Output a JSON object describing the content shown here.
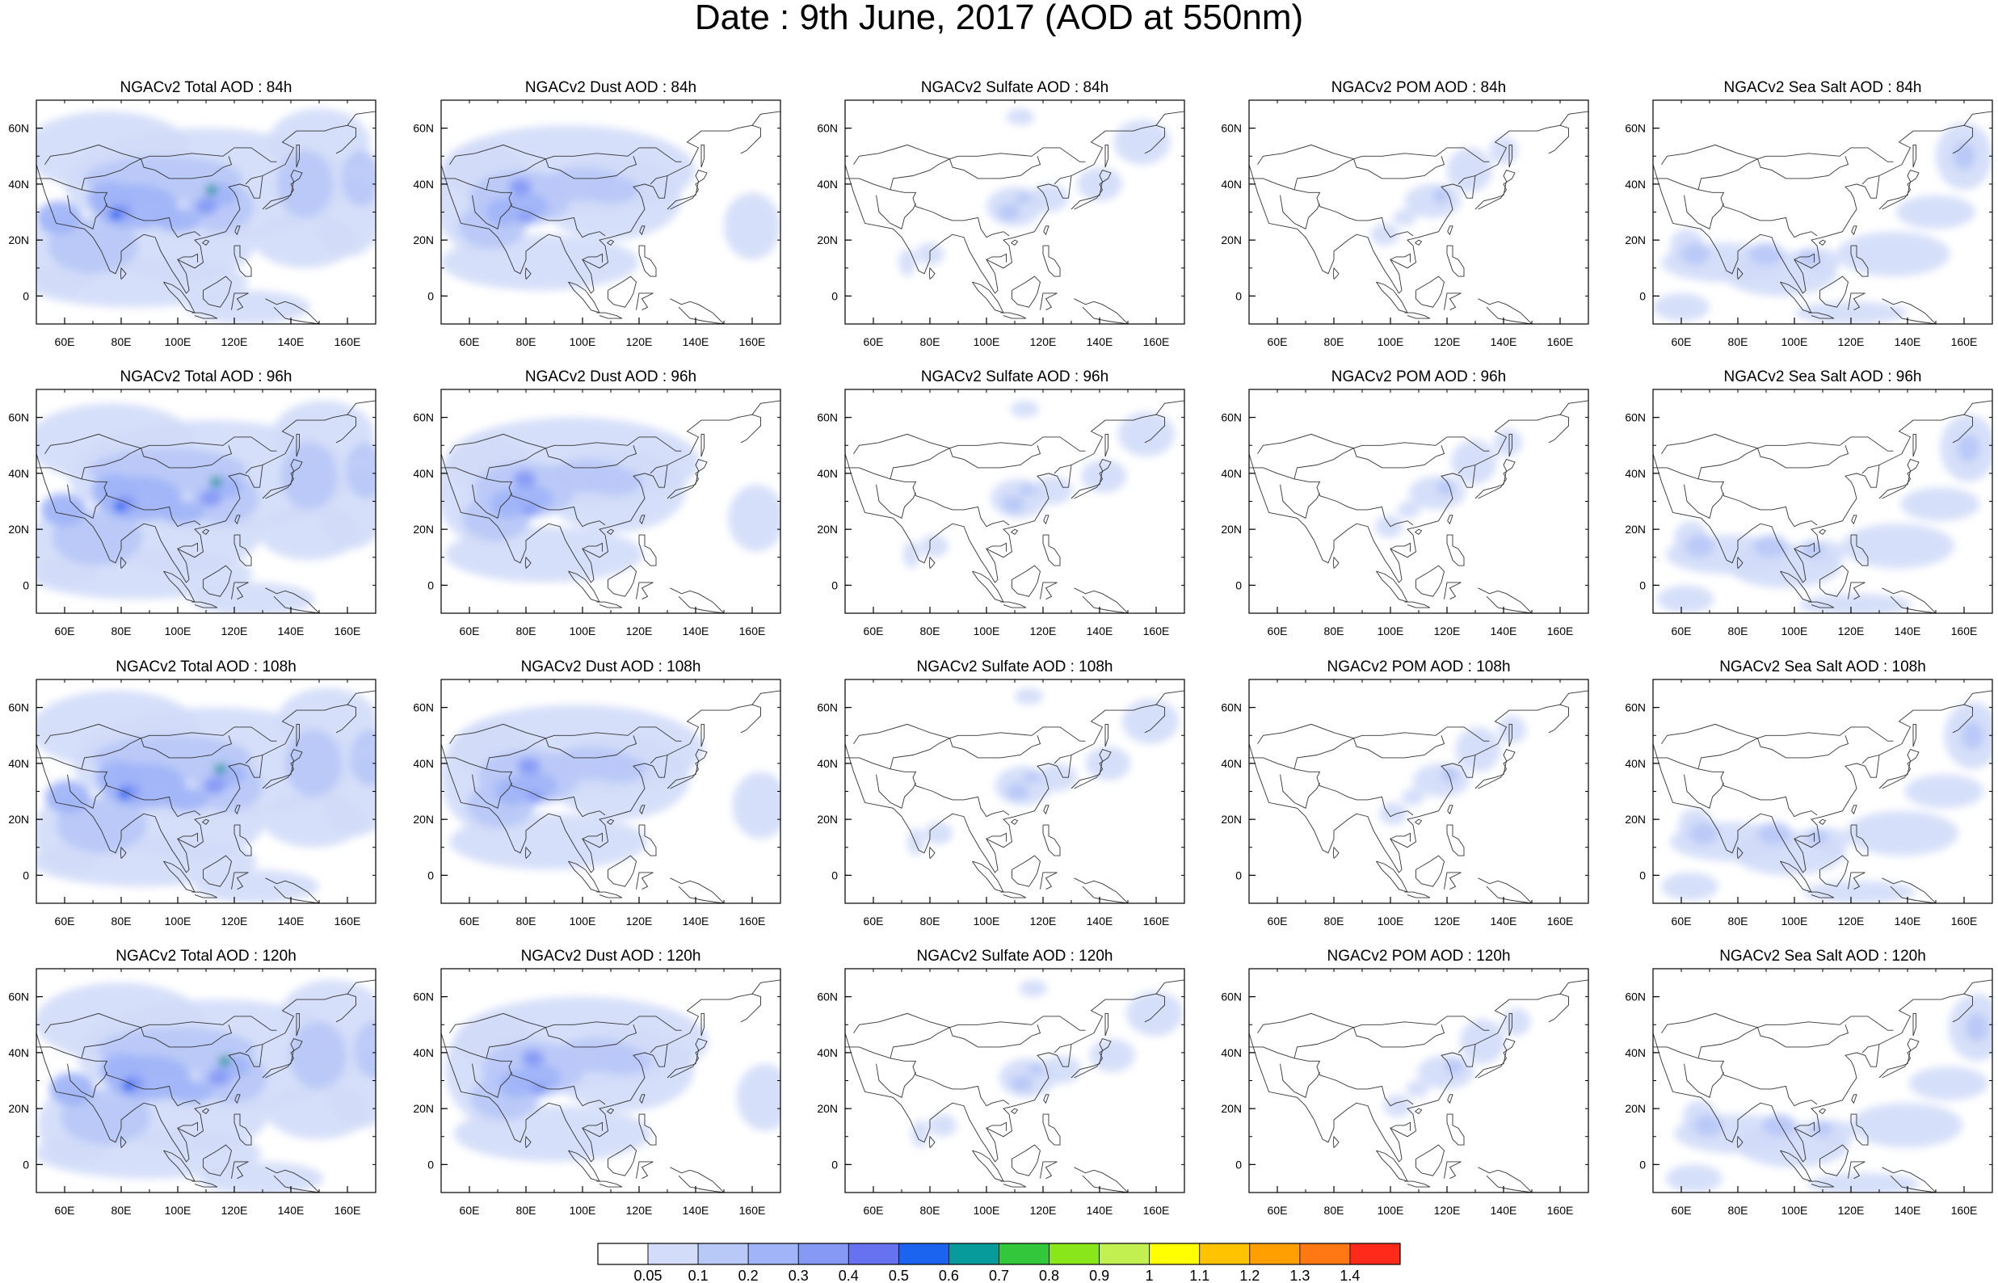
{
  "title": "Date : 9th June, 2017 (AOD at 550nm)",
  "panels": [
    [
      "NGACv2 Total AOD : 84h",
      "NGACv2 Dust AOD : 84h",
      "NGACv2 Sulfate AOD : 84h",
      "NGACv2 POM AOD : 84h",
      "NGACv2 Sea Salt AOD : 84h"
    ],
    [
      "NGACv2 Total AOD : 96h",
      "NGACv2 Dust AOD : 96h",
      "NGACv2 Sulfate AOD : 96h",
      "NGACv2 POM AOD : 96h",
      "NGACv2 Sea Salt AOD : 96h"
    ],
    [
      "NGACv2 Total AOD : 108h",
      "NGACv2 Dust AOD : 108h",
      "NGACv2 Sulfate AOD : 108h",
      "NGACv2 POM AOD : 108h",
      "NGACv2 Sea Salt AOD : 108h"
    ],
    [
      "NGACv2 Total AOD : 120h",
      "NGACv2 Dust AOD : 120h",
      "NGACv2 Sulfate AOD : 120h",
      "NGACv2 POM AOD : 120h",
      "NGACv2 Sea Salt  AOD : 120h"
    ]
  ],
  "map_extent": {
    "lon": [
      50,
      170
    ],
    "lat": [
      -10,
      70
    ]
  },
  "lon_ticks": [
    "60E",
    "80E",
    "100E",
    "120E",
    "140E",
    "160E"
  ],
  "lat_ticks": [
    "60N",
    "40N",
    "20N",
    "0"
  ],
  "colorbar": {
    "labels": [
      "0.05",
      "0.1",
      "0.2",
      "0.3",
      "0.4",
      "0.5",
      "0.6",
      "0.7",
      "0.8",
      "0.9",
      "1",
      "1.1",
      "1.2",
      "1.3",
      "1.4"
    ],
    "colors": [
      "#ffffff",
      "#d3dcf8",
      "#b8c8f7",
      "#a0b4f7",
      "#8599f5",
      "#6672ef",
      "#1a64f0",
      "#089b9b",
      "#33c83c",
      "#88e61a",
      "#c2f050",
      "#ffff00",
      "#ffc300",
      "#ffa000",
      "#ff7814",
      "#ff2a1a"
    ]
  }
}
